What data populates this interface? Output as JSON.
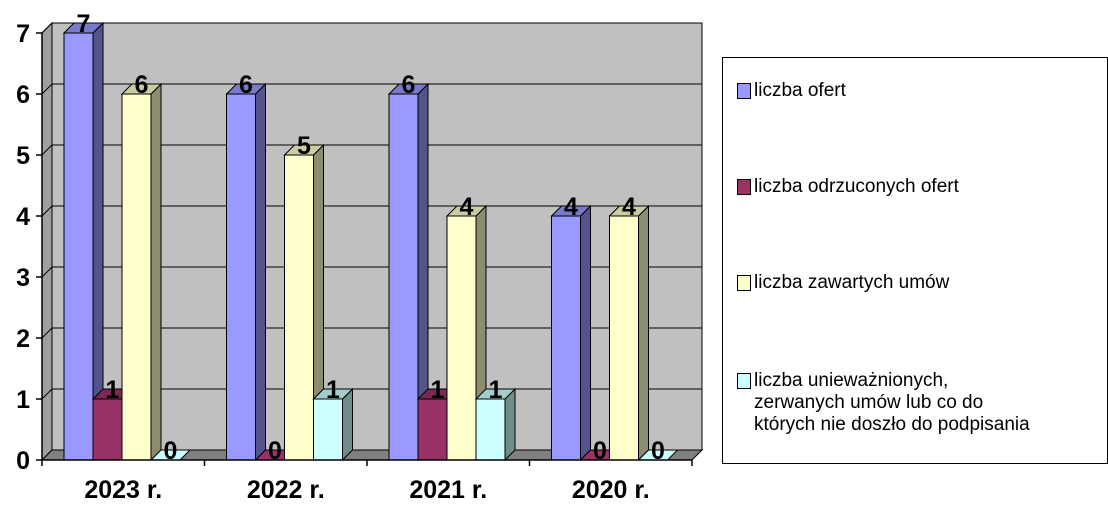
{
  "chart_data": {
    "type": "bar",
    "categories": [
      "2023 r.",
      "2022 r.",
      "2021 r.",
      "2020 r."
    ],
    "series": [
      {
        "name": "liczba ofert",
        "values": [
          7,
          6,
          6,
          4
        ],
        "color": "#9999ff"
      },
      {
        "name": "liczba odrzuconych ofert",
        "values": [
          1,
          0,
          1,
          0
        ],
        "color": "#993366"
      },
      {
        "name": "liczba zawartych umów",
        "values": [
          6,
          5,
          4,
          4
        ],
        "color": "#ffffcc"
      },
      {
        "name": "liczba unieważnionych,\nzerwanych umów lub co do\nktórych nie doszło do podpisania",
        "values": [
          0,
          1,
          1,
          0
        ],
        "color": "#ccffff"
      }
    ],
    "ylim": [
      0,
      7
    ],
    "yticks": [
      "0",
      "1",
      "2",
      "3",
      "4",
      "5",
      "6",
      "7"
    ],
    "grid": true,
    "legend_position": "right",
    "data_labels": true,
    "background": "#c0c0c0"
  }
}
